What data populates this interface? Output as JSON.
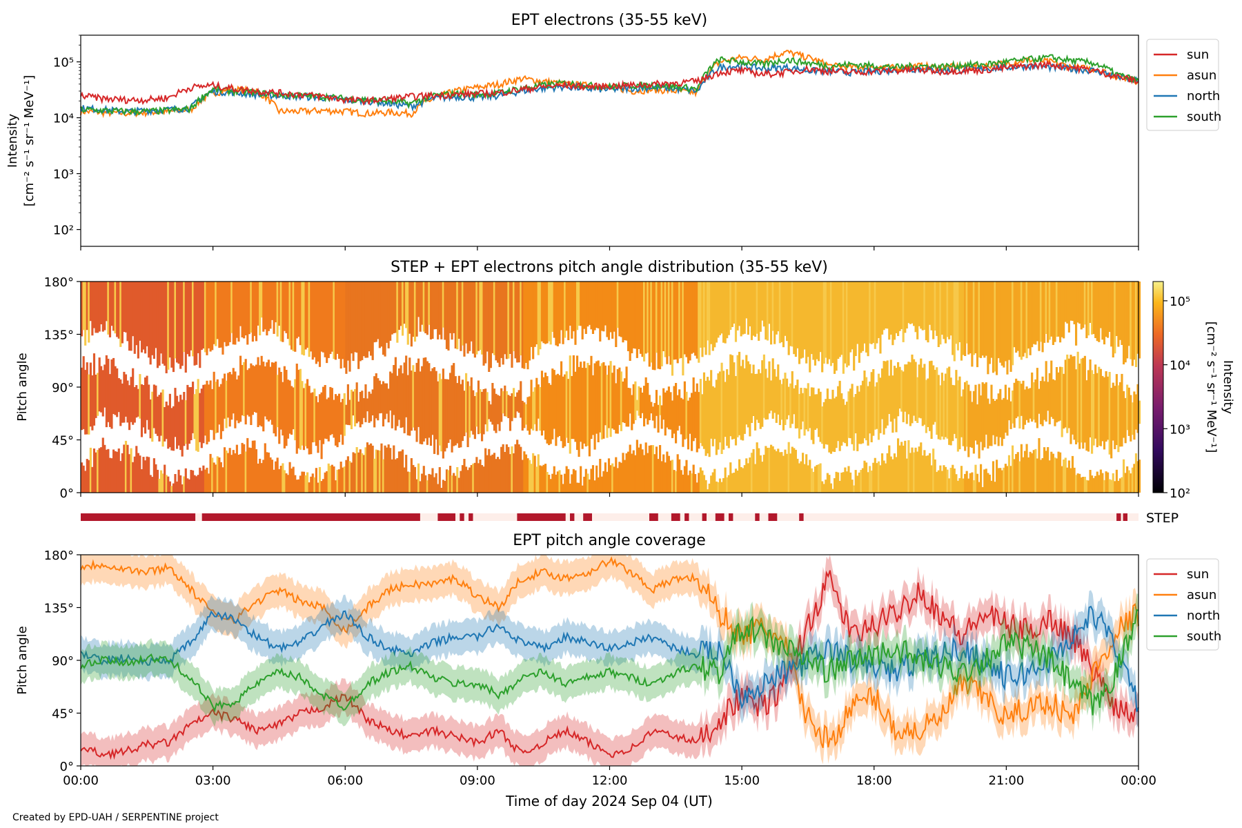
{
  "footer": "Created by EPD-UAH / SERPENTINE project",
  "xlabel": "Time of day 2024 Sep 04 (UT)",
  "x_ticks": [
    "00:00",
    "03:00",
    "06:00",
    "09:00",
    "12:00",
    "15:00",
    "18:00",
    "21:00",
    "00:00"
  ],
  "colors": {
    "sun": "#d62728",
    "asun": "#ff7f0e",
    "north": "#1f77b4",
    "south": "#2ca02c",
    "step": "#b2182b"
  },
  "chart_data": [
    {
      "type": "line",
      "title": "EPT electrons (35-55 keV)",
      "ylabel": "Intensity",
      "ylabel_units": "[cm⁻² s⁻¹ sr⁻¹ MeV⁻¹]",
      "yscale": "log",
      "ylim": [
        50,
        300000
      ],
      "ytick_labels": [
        "10²",
        "10³",
        "10⁴",
        "10⁵"
      ],
      "xlim_hours": [
        0,
        24
      ],
      "legend_position": "outside-right",
      "x": [
        0,
        0.5,
        1,
        1.5,
        2,
        2.5,
        3,
        3.5,
        4,
        4.5,
        5,
        5.5,
        6,
        6.5,
        7,
        7.5,
        8,
        8.5,
        9,
        9.5,
        10,
        10.5,
        11,
        11.5,
        12,
        12.5,
        13,
        13.5,
        14,
        14.5,
        15,
        15.5,
        16,
        16.5,
        17,
        17.5,
        18,
        18.5,
        19,
        19.5,
        20,
        20.5,
        21,
        21.5,
        22,
        22.5,
        23,
        23.5,
        24
      ],
      "series": [
        {
          "name": "sun",
          "values": [
            25000,
            22000,
            21000,
            21000,
            23000,
            35000,
            38000,
            33000,
            30000,
            28000,
            26000,
            24000,
            21000,
            20000,
            22000,
            24000,
            25000,
            26000,
            27000,
            28000,
            32000,
            36000,
            38000,
            36000,
            37000,
            38000,
            40000,
            42000,
            45000,
            65000,
            70000,
            60000,
            65000,
            75000,
            68000,
            65000,
            68000,
            70000,
            72000,
            68000,
            70000,
            72000,
            78000,
            85000,
            90000,
            80000,
            70000,
            55000,
            45000
          ]
        },
        {
          "name": "asun",
          "values": [
            13000,
            12500,
            12000,
            12500,
            13000,
            14000,
            28000,
            32000,
            30000,
            13000,
            13000,
            13500,
            13000,
            12000,
            12500,
            12000,
            22000,
            30000,
            35000,
            40000,
            50000,
            45000,
            40000,
            38000,
            36000,
            30000,
            32000,
            30000,
            28000,
            100000,
            120000,
            110000,
            150000,
            120000,
            85000,
            80000,
            82000,
            78000,
            85000,
            80000,
            82000,
            85000,
            95000,
            110000,
            100000,
            80000,
            75000,
            55000,
            45000
          ]
        },
        {
          "name": "north",
          "values": [
            15000,
            14000,
            13000,
            13500,
            14000,
            15000,
            30000,
            28000,
            26000,
            25000,
            24000,
            23000,
            21000,
            20000,
            18000,
            16000,
            22000,
            24000,
            23000,
            25000,
            30000,
            34000,
            36000,
            33000,
            32000,
            34000,
            35000,
            33000,
            30000,
            80000,
            85000,
            75000,
            80000,
            70000,
            68000,
            65000,
            68000,
            72000,
            75000,
            70000,
            72000,
            75000,
            80000,
            85000,
            80000,
            75000,
            70000,
            55000,
            45000
          ]
        },
        {
          "name": "south",
          "values": [
            14000,
            13500,
            13000,
            13000,
            13500,
            14500,
            32000,
            30000,
            28000,
            26000,
            25000,
            24000,
            22000,
            21000,
            20000,
            18000,
            25000,
            27000,
            26000,
            28000,
            34000,
            38000,
            42000,
            38000,
            36000,
            38000,
            38000,
            36000,
            33000,
            110000,
            100000,
            90000,
            110000,
            95000,
            85000,
            90000,
            85000,
            80000,
            85000,
            82000,
            88000,
            90000,
            100000,
            110000,
            120000,
            105000,
            95000,
            60000,
            45000
          ]
        }
      ]
    },
    {
      "type": "heatmap",
      "title": "STEP + EPT electrons pitch angle distribution (35-55 keV)",
      "ylabel": "Pitch angle",
      "ylim": [
        0,
        180
      ],
      "ytick_labels": [
        "0°",
        "45°",
        "90°",
        "135°",
        "180°"
      ],
      "colorbar_label": "Intensity",
      "colorbar_units": "[cm⁻² s⁻¹ sr⁻¹ MeV⁻¹]",
      "colorbar_tick_labels": [
        "10²",
        "10³",
        "10⁴",
        "10⁵"
      ],
      "colorbar_range": [
        100,
        200000
      ],
      "colormap": "inferno-like",
      "note_blocks_hours": [
        0,
        2.8,
        6.0,
        10.0,
        14.0,
        20.0,
        24
      ],
      "block_colors": [
        "#e05a2b",
        "#f07a1c",
        "#e8751f",
        "#f38b16",
        "#f5b82e",
        "#f4a520"
      ]
    },
    {
      "type": "bar",
      "label": "STEP",
      "color": "#b2182b",
      "background": "#fdeee9",
      "active_intervals_hours": [
        [
          0,
          2.6
        ],
        [
          2.75,
          7.7
        ],
        [
          8.1,
          8.5
        ],
        [
          8.6,
          8.7
        ],
        [
          8.8,
          8.9
        ],
        [
          9.9,
          11.0
        ],
        [
          11.1,
          11.2
        ],
        [
          11.4,
          11.6
        ],
        [
          12.9,
          13.1
        ],
        [
          13.4,
          13.6
        ],
        [
          13.7,
          13.8
        ],
        [
          14.1,
          14.2
        ],
        [
          14.4,
          14.6
        ],
        [
          14.7,
          14.8
        ],
        [
          15.3,
          15.4
        ],
        [
          15.6,
          15.8
        ],
        [
          16.3,
          16.4
        ],
        [
          23.5,
          23.6
        ],
        [
          23.65,
          23.75
        ]
      ]
    },
    {
      "type": "line",
      "title": "EPT pitch angle coverage",
      "ylabel": "Pitch angle",
      "ylim": [
        0,
        180
      ],
      "ytick_labels": [
        "0°",
        "45°",
        "90°",
        "135°",
        "180°"
      ],
      "legend_position": "outside-right",
      "band_halfwidth_deg": 14,
      "x": [
        0,
        0.5,
        1,
        1.5,
        2,
        2.5,
        3,
        3.5,
        4,
        4.5,
        5,
        5.5,
        6,
        6.5,
        7,
        7.5,
        8,
        8.5,
        9,
        9.5,
        10,
        10.5,
        11,
        11.5,
        12,
        12.5,
        13,
        13.5,
        14,
        14.5,
        15,
        15.5,
        16,
        16.5,
        17,
        17.5,
        18,
        18.5,
        19,
        19.5,
        20,
        20.5,
        21,
        21.5,
        22,
        22.5,
        23,
        23.5,
        24
      ],
      "series": [
        {
          "name": "sun",
          "values": [
            15,
            10,
            12,
            18,
            20,
            35,
            45,
            40,
            30,
            35,
            45,
            50,
            60,
            40,
            30,
            25,
            30,
            25,
            20,
            30,
            10,
            20,
            30,
            20,
            10,
            15,
            30,
            25,
            20,
            40,
            60,
            50,
            70,
            120,
            160,
            110,
            120,
            130,
            150,
            130,
            110,
            130,
            120,
            115,
            125,
            110,
            80,
            50,
            45
          ]
        },
        {
          "name": "asun",
          "values": [
            170,
            172,
            168,
            165,
            170,
            150,
            130,
            125,
            140,
            150,
            140,
            135,
            115,
            135,
            150,
            155,
            155,
            160,
            145,
            135,
            160,
            165,
            160,
            165,
            175,
            165,
            150,
            160,
            160,
            130,
            110,
            120,
            100,
            40,
            20,
            50,
            60,
            30,
            30,
            40,
            70,
            60,
            40,
            50,
            55,
            40,
            80,
            115,
            130
          ]
        },
        {
          "name": "north",
          "values": [
            95,
            90,
            92,
            88,
            90,
            105,
            130,
            125,
            110,
            100,
            105,
            120,
            130,
            110,
            100,
            95,
            105,
            110,
            110,
            120,
            105,
            100,
            110,
            105,
            100,
            105,
            110,
            100,
            95,
            100,
            60,
            70,
            80,
            90,
            100,
            90,
            85,
            80,
            90,
            95,
            100,
            90,
            75,
            80,
            90,
            110,
            130,
            100,
            50
          ]
        },
        {
          "name": "south",
          "values": [
            85,
            90,
            88,
            92,
            90,
            75,
            50,
            55,
            70,
            80,
            75,
            60,
            50,
            70,
            80,
            85,
            75,
            70,
            70,
            60,
            75,
            80,
            70,
            75,
            80,
            75,
            70,
            80,
            85,
            80,
            120,
            110,
            100,
            90,
            80,
            90,
            95,
            100,
            90,
            85,
            80,
            90,
            105,
            100,
            90,
            70,
            50,
            80,
            130
          ]
        }
      ]
    }
  ]
}
